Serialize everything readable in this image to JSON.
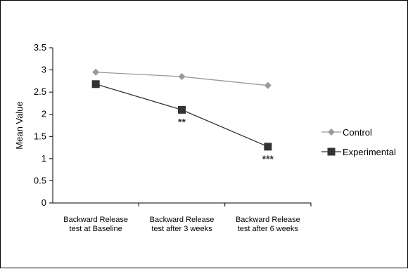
{
  "chart_data": {
    "type": "line",
    "categories": [
      [
        "Backward Release",
        "test at Baseline"
      ],
      [
        "Backward Release",
        "test after 3 weeks"
      ],
      [
        "Backward Release",
        "test after 6 weeks"
      ]
    ],
    "ylabel": "Mean Value",
    "ylim": [
      0,
      3.5
    ],
    "yticks": [
      "0",
      "0.5",
      "1",
      "1.5",
      "2",
      "2.5",
      "3",
      "3.5"
    ],
    "grid": false,
    "legend_position": "right",
    "series": [
      {
        "name": "Control",
        "values": [
          2.95,
          2.85,
          2.65
        ],
        "color": "#999999",
        "marker": "diamond"
      },
      {
        "name": "Experimental",
        "values": [
          2.68,
          2.1,
          1.27
        ],
        "color": "#333333",
        "marker": "square"
      }
    ],
    "annotations": [
      {
        "series": 1,
        "index": 1,
        "text": "**"
      },
      {
        "series": 1,
        "index": 2,
        "text": "***"
      }
    ]
  }
}
